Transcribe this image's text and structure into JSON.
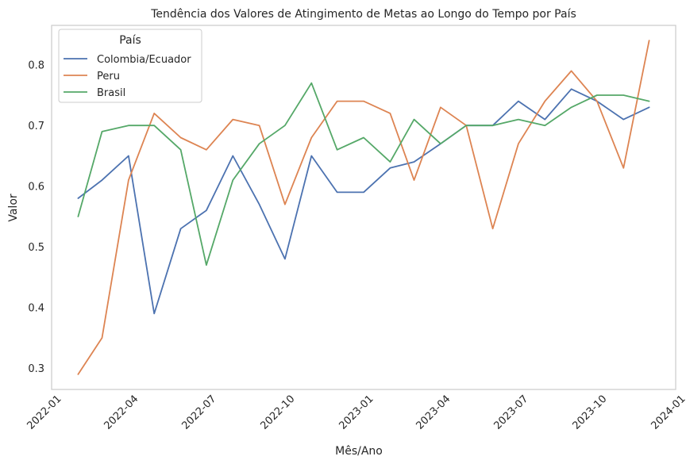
{
  "chart_data": {
    "type": "line",
    "title": "Tendência dos Valores de Atingimento de Metas ao Longo do Tempo por País",
    "xlabel": "Mês/Ano",
    "ylabel": "Valor",
    "x": [
      "2022-02",
      "2022-03",
      "2022-04",
      "2022-05",
      "2022-06",
      "2022-07",
      "2022-08",
      "2022-09",
      "2022-10",
      "2022-11",
      "2022-12",
      "2023-01",
      "2023-02",
      "2023-03",
      "2023-04",
      "2023-05",
      "2023-06",
      "2023-07",
      "2023-08",
      "2023-09",
      "2023-10",
      "2023-11",
      "2023-12"
    ],
    "xlim": [
      "2022-01-01",
      "2024-01-01"
    ],
    "ylim": [
      0.265,
      0.865
    ],
    "x_ticks": [
      "2022-01",
      "2022-04",
      "2022-07",
      "2022-10",
      "2023-01",
      "2023-04",
      "2023-07",
      "2023-10",
      "2024-01"
    ],
    "y_ticks": [
      "0.3",
      "0.4",
      "0.5",
      "0.6",
      "0.7",
      "0.8"
    ],
    "grid": false,
    "legend": {
      "title": "País",
      "placement": "top-left"
    },
    "series": [
      {
        "name": "Colombia/Ecuador",
        "color": "#4c72b0",
        "values": [
          0.58,
          0.61,
          0.65,
          0.39,
          0.53,
          0.56,
          0.65,
          0.57,
          0.48,
          0.65,
          0.59,
          0.59,
          0.63,
          0.64,
          0.67,
          0.7,
          0.7,
          0.74,
          0.71,
          0.76,
          0.74,
          0.71,
          0.73
        ]
      },
      {
        "name": "Peru",
        "color": "#dd8452",
        "values": [
          0.29,
          0.35,
          0.61,
          0.72,
          0.68,
          0.66,
          0.71,
          0.7,
          0.57,
          0.68,
          0.74,
          0.74,
          0.72,
          0.61,
          0.73,
          0.7,
          0.53,
          0.67,
          0.74,
          0.79,
          0.74,
          0.63,
          0.84
        ]
      },
      {
        "name": "Brasil",
        "color": "#55a868",
        "values": [
          0.55,
          0.69,
          0.7,
          0.7,
          0.66,
          0.47,
          0.61,
          0.67,
          0.7,
          0.77,
          0.66,
          0.68,
          0.64,
          0.71,
          0.67,
          0.7,
          0.7,
          0.71,
          0.7,
          0.73,
          0.75,
          0.75,
          0.74
        ]
      }
    ]
  }
}
